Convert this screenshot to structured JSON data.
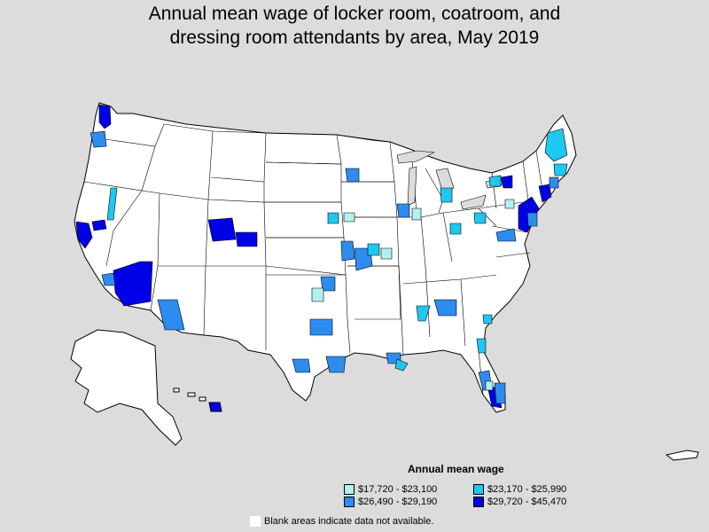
{
  "title": {
    "line1": "Annual mean wage of locker room, coatroom, and",
    "line2": "dressing room attendants by area, May 2019"
  },
  "legend": {
    "title": "Annual mean wage",
    "items": [
      {
        "label": "$17,720 - $23,100",
        "color": "#b3f0f0"
      },
      {
        "label": "$23,170 - $25,990",
        "color": "#1ec8f0"
      },
      {
        "label": "$26,490 - $29,190",
        "color": "#2d8cf0"
      },
      {
        "label": "$29,720 - $45,470",
        "color": "#0000e6"
      }
    ]
  },
  "note": "Blank areas indicate data not available.",
  "colors": {
    "background": "#dcdcdc",
    "land": "#ffffff",
    "border": "#000000"
  }
}
